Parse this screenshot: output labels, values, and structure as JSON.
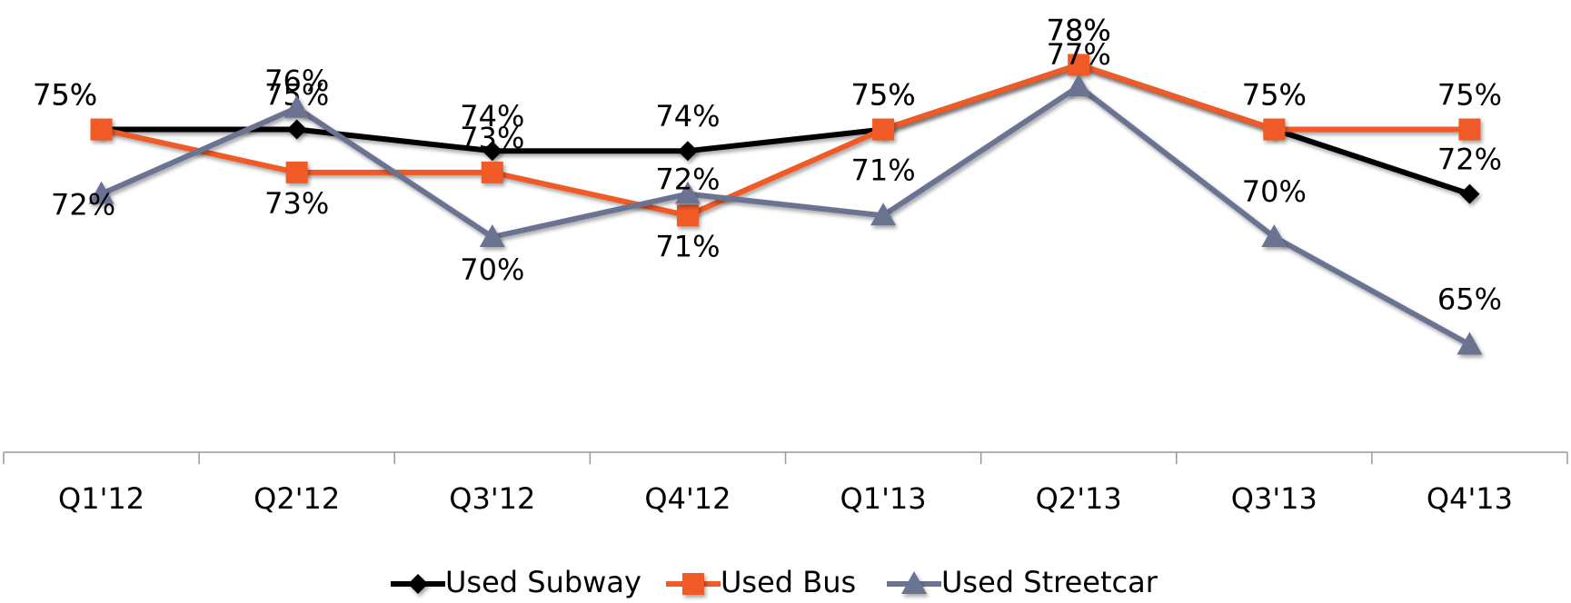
{
  "chart_data": {
    "type": "line",
    "categories": [
      "Q1'12",
      "Q2'12",
      "Q3'12",
      "Q4'12",
      "Q1'13",
      "Q2'13",
      "Q3'13",
      "Q4'13"
    ],
    "ylim": [
      60,
      80
    ],
    "series": [
      {
        "name": "Used Subway",
        "color": "#000000",
        "marker": "diamond",
        "values": [
          75,
          75,
          74,
          74,
          75,
          78,
          75,
          72
        ],
        "value_labels": [
          "75%",
          "75%",
          "74%",
          "74%",
          "75%",
          "78%",
          "75%",
          "72%"
        ]
      },
      {
        "name": "Used Bus",
        "color": "#f05a28",
        "marker": "square",
        "values": [
          75,
          73,
          73,
          71,
          75,
          78,
          75,
          75
        ],
        "value_labels": [
          "75%",
          "73%",
          "73%",
          "71%",
          "75%",
          "78%",
          "75%",
          "75%"
        ]
      },
      {
        "name": "Used Streetcar",
        "color": "#6b7391",
        "marker": "triangle",
        "values": [
          72,
          76,
          70,
          72,
          71,
          77,
          70,
          65
        ],
        "value_labels": [
          "72%",
          "76%",
          "70%",
          "72%",
          "71%",
          "77%",
          "70%",
          "65%"
        ]
      }
    ]
  }
}
